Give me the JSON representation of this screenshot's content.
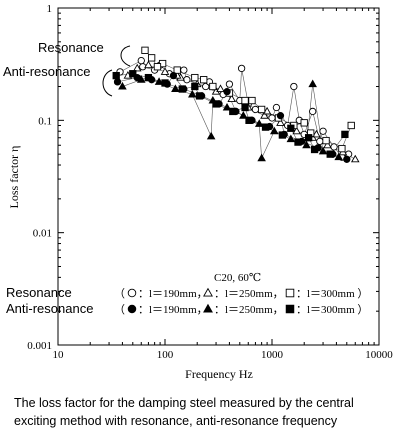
{
  "chart_data": {
    "type": "scatter",
    "xscale": "log",
    "yscale": "log",
    "xlim": [
      10,
      10000
    ],
    "ylim": [
      0.001,
      1
    ],
    "xlabel": "Frequency  Hz",
    "ylabel": "Loss factor  η",
    "x_tick_labels": [
      "10",
      "100",
      "1000",
      "10000"
    ],
    "y_tick_labels": [
      "0.001",
      "0.01",
      "0.1",
      "1"
    ],
    "annotation_text": "C20, 60℃",
    "callouts": [
      {
        "text": "Resonance"
      },
      {
        "text": "Anti-resonance"
      }
    ],
    "legend": {
      "rows": [
        {
          "label": "Resonance",
          "entries": [
            {
              "prefix": "（",
              "symbol": "circle-open",
              "text": "：l＝190mm，"
            },
            {
              "prefix": "",
              "symbol": "triangle-open",
              "text": "：l＝250mm，"
            },
            {
              "prefix": "",
              "symbol": "square-open",
              "text": "：l＝300mm ）"
            }
          ]
        },
        {
          "label": "Anti-resonance",
          "entries": [
            {
              "prefix": "（",
              "symbol": "circle-filled",
              "text": "：l＝190mm，"
            },
            {
              "prefix": "",
              "symbol": "triangle-filled",
              "text": "：l＝250mm，"
            },
            {
              "prefix": "",
              "symbol": "square-filled",
              "text": "：l＝300mm ）"
            }
          ]
        }
      ]
    },
    "series": [
      {
        "name": "Resonance l=190mm",
        "marker": "circle-open",
        "x": [
          38,
          62,
          80,
          110,
          160,
          240,
          350,
          500,
          700,
          1000,
          1400,
          2000,
          2800,
          3800,
          5200,
          60,
          150,
          400,
          1100,
          3000,
          4500,
          90,
          260,
          600,
          1800,
          2400,
          520,
          1600
        ],
        "y": [
          0.27,
          0.3,
          0.28,
          0.26,
          0.23,
          0.2,
          0.17,
          0.15,
          0.125,
          0.105,
          0.09,
          0.075,
          0.065,
          0.058,
          0.05,
          0.34,
          0.28,
          0.21,
          0.13,
          0.08,
          0.047,
          0.31,
          0.22,
          0.14,
          0.1,
          0.12,
          0.29,
          0.2
        ]
      },
      {
        "name": "Resonance l=250mm",
        "marker": "triangle-open",
        "x": [
          45,
          70,
          100,
          140,
          200,
          300,
          420,
          600,
          850,
          1200,
          1700,
          2400,
          3300,
          4600,
          6000,
          55,
          130,
          330,
          900,
          2600
        ],
        "y": [
          0.25,
          0.31,
          0.27,
          0.24,
          0.21,
          0.18,
          0.155,
          0.13,
          0.11,
          0.095,
          0.08,
          0.07,
          0.06,
          0.052,
          0.045,
          0.29,
          0.25,
          0.19,
          0.12,
          0.075
        ]
      },
      {
        "name": "Resonance l=300mm",
        "marker": "square-open",
        "x": [
          65,
          75,
          95,
          130,
          190,
          280,
          400,
          560,
          800,
          1150,
          1600,
          2300,
          3200,
          4500,
          5500,
          85,
          230,
          650,
          2000
        ],
        "y": [
          0.42,
          0.36,
          0.32,
          0.28,
          0.24,
          0.2,
          0.175,
          0.15,
          0.125,
          0.105,
          0.09,
          0.077,
          0.066,
          0.056,
          0.09,
          0.3,
          0.23,
          0.15,
          0.095
        ]
      },
      {
        "name": "Anti-resonance l=190mm",
        "marker": "circle-filled",
        "x": [
          36,
          55,
          75,
          105,
          150,
          220,
          320,
          460,
          650,
          950,
          1300,
          1900,
          2700,
          3700,
          5000,
          120,
          380,
          1200
        ],
        "y": [
          0.22,
          0.24,
          0.23,
          0.21,
          0.19,
          0.165,
          0.14,
          0.12,
          0.1,
          0.088,
          0.075,
          0.065,
          0.057,
          0.05,
          0.045,
          0.25,
          0.18,
          0.11
        ]
      },
      {
        "name": "Anti-resonance l=250mm",
        "marker": "triangle-filled",
        "x": [
          40,
          60,
          88,
          125,
          180,
          270,
          380,
          540,
          760,
          1050,
          1500,
          2100,
          2400,
          3000,
          4200,
          280,
          800
        ],
        "y": [
          0.2,
          0.23,
          0.22,
          0.19,
          0.17,
          0.072,
          0.13,
          0.11,
          0.093,
          0.08,
          0.068,
          0.06,
          0.21,
          0.053,
          0.047,
          0.15,
          0.046
        ]
      },
      {
        "name": "Anti-resonance l=300mm",
        "marker": "square-filled",
        "x": [
          35,
          50,
          70,
          100,
          145,
          210,
          300,
          430,
          610,
          870,
          1250,
          1750,
          2500,
          3500,
          4800,
          190,
          560,
          1500,
          2200
        ],
        "y": [
          0.25,
          0.26,
          0.24,
          0.215,
          0.19,
          0.165,
          0.14,
          0.12,
          0.1,
          0.087,
          0.074,
          0.064,
          0.055,
          0.05,
          0.075,
          0.2,
          0.13,
          0.085,
          0.07
        ]
      }
    ]
  },
  "caption": {
    "line1": "The loss factor for the damping steel measured by the central",
    "line2": "exciting method with resonance, anti-resonance frequency"
  }
}
